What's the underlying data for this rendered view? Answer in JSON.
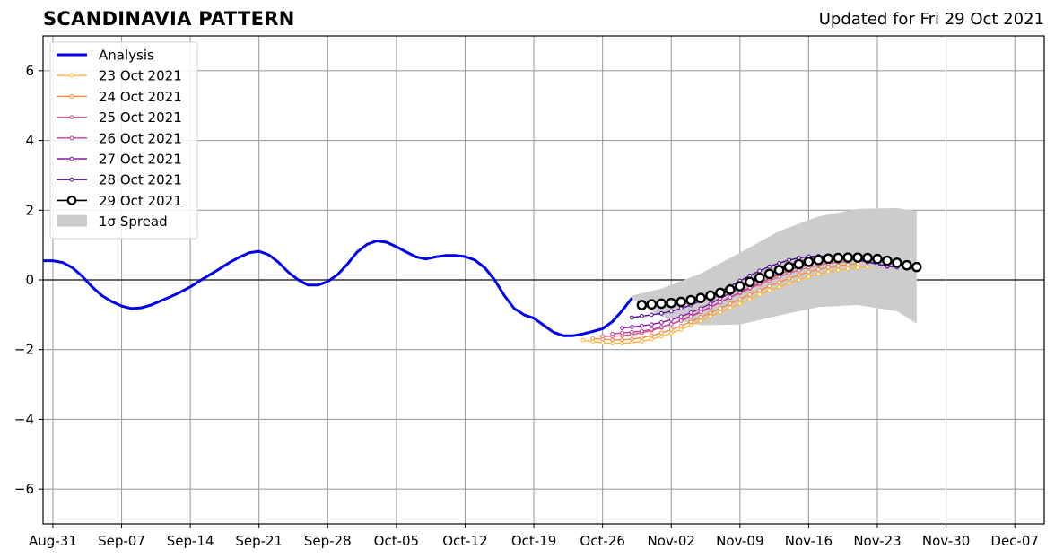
{
  "header": {
    "title": "SCANDINAVIA PATTERN",
    "updated": "Updated for Fri 29 Oct 2021"
  },
  "chart_data": {
    "type": "line",
    "title": "SCANDINAVIA PATTERN",
    "subtitle": "Updated for Fri 29 Oct 2021",
    "xlabel": "",
    "ylabel": "",
    "ylim": [
      -7,
      7
    ],
    "xlim": [
      "2021-08-30",
      "2021-12-10"
    ],
    "grid": true,
    "legend_position": "top-left",
    "x_ticks": [
      "Aug-31",
      "Sep-07",
      "Sep-14",
      "Sep-21",
      "Sep-28",
      "Oct-05",
      "Oct-12",
      "Oct-19",
      "Oct-26",
      "Nov-02",
      "Nov-09",
      "Nov-16",
      "Nov-23",
      "Nov-30",
      "Dec-07"
    ],
    "x_tick_dates": [
      "2021-08-31",
      "2021-09-07",
      "2021-09-14",
      "2021-09-21",
      "2021-09-28",
      "2021-10-05",
      "2021-10-12",
      "2021-10-19",
      "2021-10-26",
      "2021-11-02",
      "2021-11-09",
      "2021-11-16",
      "2021-11-23",
      "2021-11-30",
      "2021-12-07"
    ],
    "y_ticks": [
      -6,
      -4,
      -2,
      0,
      2,
      4,
      6
    ],
    "y_tick_labels": [
      "−6",
      "−4",
      "−2",
      "0",
      "2",
      "4",
      "6"
    ],
    "analysis": {
      "name": "Analysis",
      "color": "#0000ee",
      "start_date": "2021-08-30",
      "values": [
        0.55,
        0.55,
        0.5,
        0.35,
        0.1,
        -0.2,
        -0.45,
        -0.62,
        -0.75,
        -0.82,
        -0.8,
        -0.72,
        -0.6,
        -0.48,
        -0.35,
        -0.2,
        -0.02,
        0.15,
        0.32,
        0.5,
        0.65,
        0.78,
        0.82,
        0.72,
        0.5,
        0.22,
        0.0,
        -0.15,
        -0.15,
        -0.05,
        0.15,
        0.45,
        0.8,
        1.02,
        1.12,
        1.08,
        0.95,
        0.8,
        0.66,
        0.6,
        0.66,
        0.7,
        0.7,
        0.67,
        0.57,
        0.35,
        0.0,
        -0.45,
        -0.82,
        -1.0,
        -1.1,
        -1.3,
        -1.5,
        -1.6,
        -1.6,
        -1.55,
        -1.48,
        -1.4,
        -1.2,
        -0.88,
        -0.52
      ]
    },
    "forecasts": [
      {
        "name": "23 Oct 2021",
        "color": "#ffb52e",
        "start_date": "2021-10-24",
        "values": [
          -1.73,
          -1.77,
          -1.8,
          -1.82,
          -1.82,
          -1.8,
          -1.76,
          -1.7,
          -1.62,
          -1.53,
          -1.42,
          -1.3,
          -1.18,
          -1.05,
          -0.93,
          -0.8,
          -0.68,
          -0.55,
          -0.42,
          -0.3,
          -0.2,
          -0.1,
          0.0,
          0.09,
          0.17,
          0.23,
          0.28,
          0.32,
          0.35,
          0.37
        ]
      },
      {
        "name": "24 Oct 2021",
        "color": "#f98a3a",
        "start_date": "2021-10-25",
        "values": [
          -1.68,
          -1.7,
          -1.72,
          -1.72,
          -1.7,
          -1.66,
          -1.6,
          -1.52,
          -1.43,
          -1.32,
          -1.2,
          -1.07,
          -0.94,
          -0.81,
          -0.68,
          -0.55,
          -0.42,
          -0.3,
          -0.18,
          -0.07,
          0.04,
          0.14,
          0.23,
          0.3,
          0.36,
          0.4,
          0.44,
          0.46
        ]
      },
      {
        "name": "25 Oct 2021",
        "color": "#e5587d",
        "start_date": "2021-10-26",
        "values": [
          -1.62,
          -1.62,
          -1.6,
          -1.57,
          -1.52,
          -1.45,
          -1.37,
          -1.27,
          -1.16,
          -1.04,
          -0.91,
          -0.78,
          -0.64,
          -0.51,
          -0.38,
          -0.25,
          -0.13,
          -0.02,
          0.09,
          0.19,
          0.28,
          0.36,
          0.42,
          0.47,
          0.51,
          0.53
        ]
      },
      {
        "name": "26 Oct 2021",
        "color": "#c03c9a",
        "start_date": "2021-10-27",
        "values": [
          -1.55,
          -1.52,
          -1.5,
          -1.47,
          -1.42,
          -1.35,
          -1.27,
          -1.17,
          -1.05,
          -0.92,
          -0.78,
          -0.64,
          -0.5,
          -0.36,
          -0.22,
          -0.09,
          0.04,
          0.16,
          0.27,
          0.37,
          0.46,
          0.53,
          0.58,
          0.61,
          0.63
        ]
      },
      {
        "name": "27 Oct 2021",
        "color": "#8b13a8",
        "start_date": "2021-10-28",
        "values": [
          -1.38,
          -1.35,
          -1.32,
          -1.28,
          -1.22,
          -1.14,
          -1.05,
          -0.94,
          -0.82,
          -0.68,
          -0.53,
          -0.38,
          -0.23,
          -0.08,
          0.06,
          0.2,
          0.32,
          0.43,
          0.52,
          0.6,
          0.65,
          0.68,
          0.68,
          0.65,
          0.6,
          0.53,
          0.45,
          0.38
        ]
      },
      {
        "name": "28 Oct 2021",
        "color": "#4a0c95",
        "start_date": "2021-10-29",
        "values": [
          -1.08,
          -1.04,
          -1.0,
          -0.96,
          -0.9,
          -0.82,
          -0.72,
          -0.6,
          -0.47,
          -0.33,
          -0.18,
          -0.03,
          0.12,
          0.26,
          0.38,
          0.48,
          0.57,
          0.63,
          0.67,
          0.68,
          0.68,
          0.66,
          0.62,
          0.57,
          0.51,
          0.45,
          0.4,
          0.36
        ]
      },
      {
        "name": "29 Oct 2021",
        "color": "#000000",
        "start_date": "2021-10-30",
        "values": [
          -0.72,
          -0.7,
          -0.68,
          -0.66,
          -0.63,
          -0.58,
          -0.52,
          -0.45,
          -0.37,
          -0.28,
          -0.18,
          -0.06,
          0.06,
          0.17,
          0.28,
          0.37,
          0.45,
          0.52,
          0.57,
          0.61,
          0.63,
          0.64,
          0.64,
          0.63,
          0.6,
          0.55,
          0.49,
          0.42,
          0.37
        ]
      }
    ],
    "spread": {
      "name": "1σ Spread",
      "color": "#cccccc",
      "dates": [
        "2021-10-29",
        "2021-11-01",
        "2021-11-05",
        "2021-11-09",
        "2021-11-13",
        "2021-11-17",
        "2021-11-21",
        "2021-11-25",
        "2021-11-27"
      ],
      "upper": [
        -0.45,
        -0.25,
        0.18,
        0.78,
        1.4,
        1.82,
        2.04,
        2.06,
        1.98
      ],
      "lower": [
        -0.55,
        -1.05,
        -1.3,
        -1.28,
        -1.02,
        -0.78,
        -0.72,
        -0.9,
        -1.25
      ]
    }
  }
}
